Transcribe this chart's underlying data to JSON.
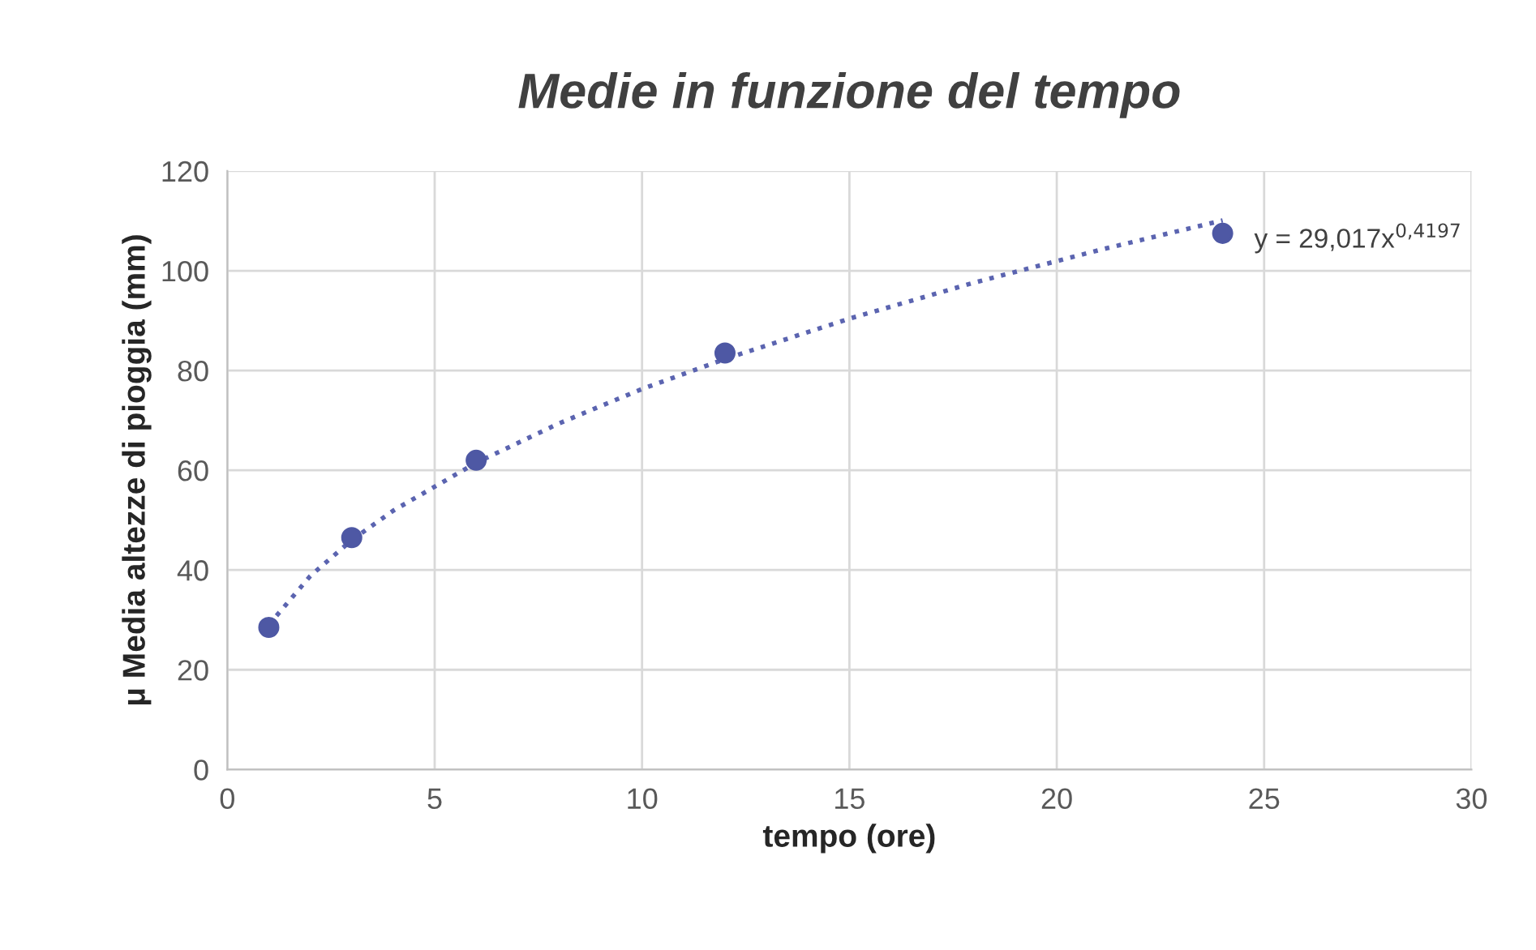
{
  "chart_data": {
    "type": "scatter",
    "title": "Medie in funzione del tempo",
    "xlabel": "tempo (ore)",
    "ylabel": "μ Media altezze di pioggia (mm)",
    "series": [
      {
        "color": "#4e58a4",
        "marker": "circle",
        "x": [
          1,
          3,
          6,
          12,
          24
        ],
        "values": [
          28.5,
          46.5,
          62,
          83.5,
          107.5
        ]
      },
      {
        "type": "line",
        "color": "#5b64b0",
        "line_style": "dotted",
        "marker": "none",
        "x": [
          1,
          2,
          3,
          4,
          6,
          8,
          10,
          12,
          15,
          18,
          21,
          24
        ],
        "values": [
          29.0,
          38.8,
          46.0,
          51.9,
          61.5,
          69.4,
          76.3,
          82.3,
          90.4,
          97.6,
          104.1,
          110.1
        ]
      }
    ],
    "annotations": [
      {
        "text": "y = 29,017x$^{0,4197}$",
        "x": 24,
        "y": 110.1
      }
    ],
    "xlim": [
      0,
      30
    ],
    "xticks": [
      0,
      5,
      10,
      15,
      20,
      25,
      30
    ],
    "ylim": [
      0,
      120
    ],
    "yticks": [
      0,
      20,
      40,
      60,
      80,
      100,
      120
    ],
    "grid": true
  }
}
